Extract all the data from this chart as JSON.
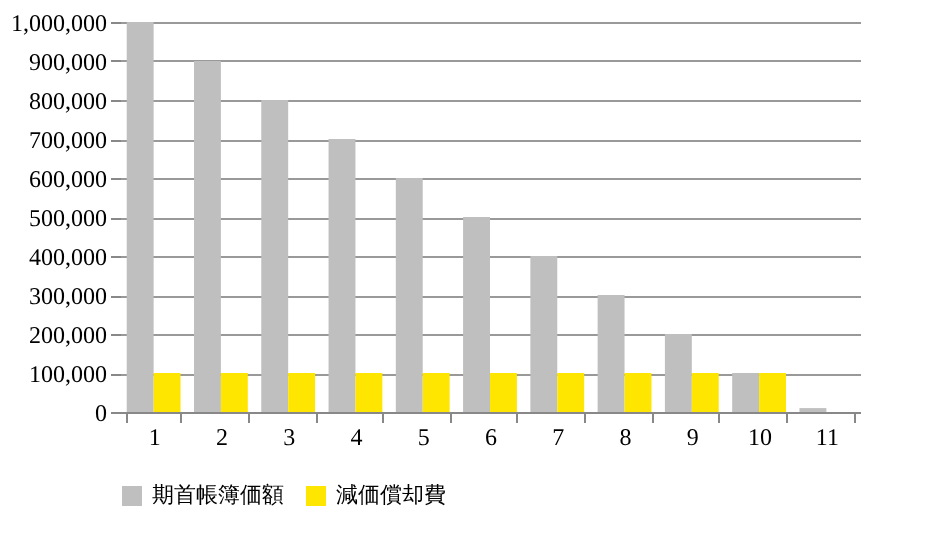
{
  "chart_data": {
    "type": "bar",
    "categories": [
      "1",
      "2",
      "3",
      "4",
      "5",
      "6",
      "7",
      "8",
      "9",
      "10",
      "11"
    ],
    "series": [
      {
        "name": "期首帳簿価額",
        "color": "#bfbfbf",
        "values": [
          1000000,
          900000,
          800000,
          700000,
          600000,
          500000,
          400000,
          300000,
          200000,
          100000,
          10000
        ]
      },
      {
        "name": "減価償却費",
        "color": "#ffe600",
        "values": [
          100000,
          100000,
          100000,
          100000,
          100000,
          100000,
          100000,
          100000,
          100000,
          100000,
          null
        ]
      }
    ],
    "ylim": [
      0,
      1000000
    ],
    "yticks": [
      0,
      {
        "value": 100000,
        "label": "100,000"
      },
      {
        "value": 200000,
        "label": "200,000"
      },
      {
        "value": 300000,
        "label": "300,000"
      },
      {
        "value": 400000,
        "label": "400,000"
      },
      {
        "value": 500000,
        "label": "500,000"
      },
      {
        "value": 600000,
        "label": "600,000"
      },
      {
        "value": 700000,
        "label": "700,000"
      },
      {
        "value": 800000,
        "label": "800,000"
      },
      {
        "value": 900000,
        "label": "900,000"
      },
      {
        "value": 1000000,
        "label": "1,000,000"
      }
    ],
    "grid": "y",
    "legend": "bottom"
  }
}
